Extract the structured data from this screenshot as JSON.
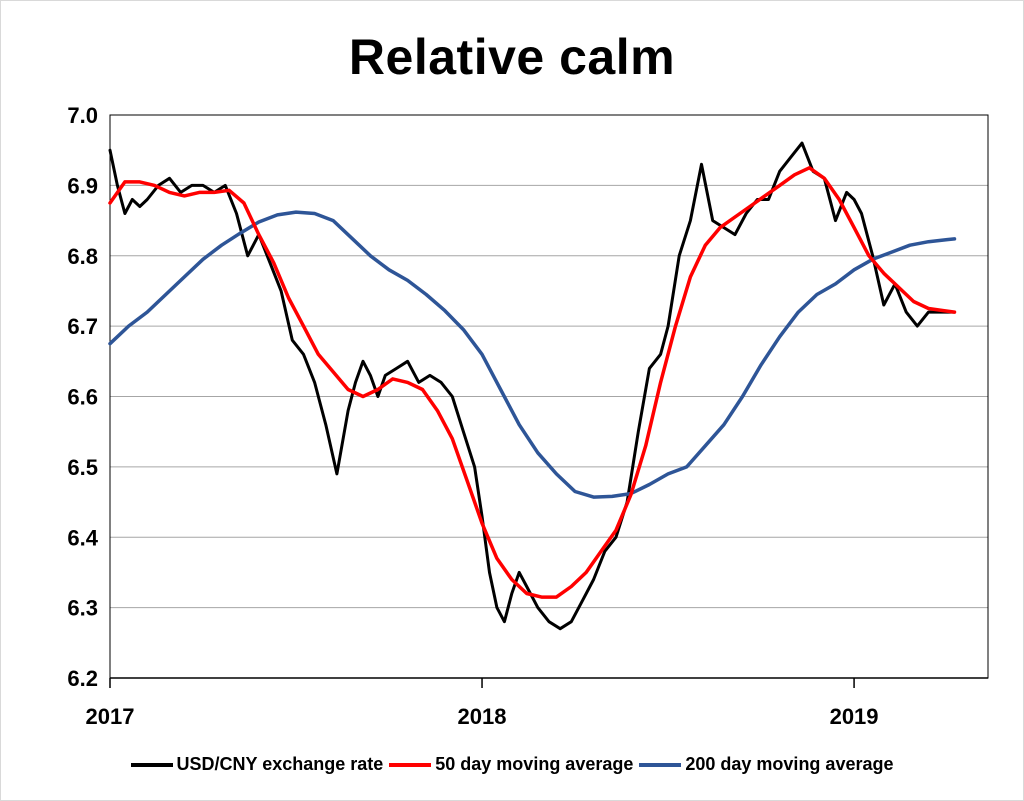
{
  "chart_data": {
    "type": "line",
    "title": "Relative calm",
    "xlabel": "",
    "ylabel": "",
    "x_ticks": [
      "2017",
      "2018",
      "2019"
    ],
    "x_range": [
      "2017-01",
      "2019-05"
    ],
    "ylim": [
      6.2,
      7.0
    ],
    "y_ticks": [
      "6.2",
      "6.3",
      "6.4",
      "6.5",
      "6.6",
      "6.7",
      "6.8",
      "6.9",
      "7.0"
    ],
    "grid": "horizontal",
    "legend": "bottom",
    "series": [
      {
        "name": "USD/CNY exchange rate",
        "color": "#000000",
        "x": [
          2017.0,
          2017.02,
          2017.04,
          2017.06,
          2017.08,
          2017.1,
          2017.13,
          2017.16,
          2017.19,
          2017.22,
          2017.25,
          2017.28,
          2017.31,
          2017.34,
          2017.37,
          2017.4,
          2017.43,
          2017.46,
          2017.49,
          2017.52,
          2017.55,
          2017.58,
          2017.61,
          2017.64,
          2017.66,
          2017.68,
          2017.7,
          2017.72,
          2017.74,
          2017.77,
          2017.8,
          2017.83,
          2017.86,
          2017.89,
          2017.92,
          2017.95,
          2017.98,
          2018.0,
          2018.02,
          2018.04,
          2018.06,
          2018.08,
          2018.1,
          2018.12,
          2018.15,
          2018.18,
          2018.21,
          2018.24,
          2018.27,
          2018.3,
          2018.33,
          2018.36,
          2018.39,
          2018.42,
          2018.45,
          2018.48,
          2018.5,
          2018.53,
          2018.56,
          2018.59,
          2018.62,
          2018.65,
          2018.68,
          2018.71,
          2018.74,
          2018.77,
          2018.8,
          2018.83,
          2018.86,
          2018.89,
          2018.92,
          2018.95,
          2018.98,
          2019.0,
          2019.02,
          2019.05,
          2019.08,
          2019.11,
          2019.14,
          2019.17,
          2019.2,
          2019.23,
          2019.27
        ],
        "y": [
          6.95,
          6.9,
          6.86,
          6.88,
          6.87,
          6.88,
          6.9,
          6.91,
          6.89,
          6.9,
          6.9,
          6.89,
          6.9,
          6.86,
          6.8,
          6.83,
          6.79,
          6.75,
          6.68,
          6.66,
          6.62,
          6.56,
          6.49,
          6.58,
          6.62,
          6.65,
          6.63,
          6.6,
          6.63,
          6.64,
          6.65,
          6.62,
          6.63,
          6.62,
          6.6,
          6.55,
          6.5,
          6.43,
          6.35,
          6.3,
          6.28,
          6.32,
          6.35,
          6.33,
          6.3,
          6.28,
          6.27,
          6.28,
          6.31,
          6.34,
          6.38,
          6.4,
          6.45,
          6.55,
          6.64,
          6.66,
          6.7,
          6.8,
          6.85,
          6.93,
          6.85,
          6.84,
          6.83,
          6.86,
          6.88,
          6.88,
          6.92,
          6.94,
          6.96,
          6.92,
          6.91,
          6.85,
          6.89,
          6.88,
          6.86,
          6.8,
          6.73,
          6.76,
          6.72,
          6.7,
          6.72,
          6.72,
          6.72
        ]
      },
      {
        "name": "50 day moving average",
        "color": "#ff0000",
        "x": [
          2017.0,
          2017.04,
          2017.08,
          2017.12,
          2017.16,
          2017.2,
          2017.24,
          2017.28,
          2017.32,
          2017.36,
          2017.4,
          2017.44,
          2017.48,
          2017.52,
          2017.56,
          2017.6,
          2017.64,
          2017.68,
          2017.72,
          2017.76,
          2017.8,
          2017.84,
          2017.88,
          2017.92,
          2017.96,
          2018.0,
          2018.04,
          2018.08,
          2018.12,
          2018.16,
          2018.2,
          2018.24,
          2018.28,
          2018.32,
          2018.36,
          2018.4,
          2018.44,
          2018.48,
          2018.52,
          2018.56,
          2018.6,
          2018.64,
          2018.68,
          2018.72,
          2018.76,
          2018.8,
          2018.84,
          2018.88,
          2018.92,
          2018.96,
          2019.0,
          2019.04,
          2019.08,
          2019.12,
          2019.16,
          2019.2,
          2019.24,
          2019.27
        ],
        "y": [
          6.875,
          6.905,
          6.905,
          6.9,
          6.89,
          6.885,
          6.89,
          6.89,
          6.893,
          6.875,
          6.83,
          6.79,
          6.74,
          6.7,
          6.66,
          6.635,
          6.61,
          6.6,
          6.61,
          6.625,
          6.62,
          6.61,
          6.58,
          6.54,
          6.48,
          6.42,
          6.37,
          6.34,
          6.32,
          6.315,
          6.315,
          6.33,
          6.35,
          6.38,
          6.41,
          6.46,
          6.53,
          6.62,
          6.7,
          6.77,
          6.815,
          6.84,
          6.855,
          6.87,
          6.885,
          6.9,
          6.915,
          6.925,
          6.91,
          6.88,
          6.84,
          6.8,
          6.775,
          6.755,
          6.735,
          6.725,
          6.722,
          6.72
        ]
      },
      {
        "name": "200 day moving average",
        "color": "#2e5597",
        "x": [
          2017.0,
          2017.05,
          2017.1,
          2017.15,
          2017.2,
          2017.25,
          2017.3,
          2017.35,
          2017.4,
          2017.45,
          2017.5,
          2017.55,
          2017.6,
          2017.65,
          2017.7,
          2017.75,
          2017.8,
          2017.85,
          2017.9,
          2017.95,
          2018.0,
          2018.05,
          2018.1,
          2018.15,
          2018.2,
          2018.25,
          2018.3,
          2018.35,
          2018.4,
          2018.45,
          2018.5,
          2018.55,
          2018.6,
          2018.65,
          2018.7,
          2018.75,
          2018.8,
          2018.85,
          2018.9,
          2018.95,
          2019.0,
          2019.05,
          2019.1,
          2019.15,
          2019.2,
          2019.25,
          2019.27
        ],
        "y": [
          6.675,
          6.7,
          6.72,
          6.745,
          6.77,
          6.795,
          6.815,
          6.832,
          6.848,
          6.858,
          6.862,
          6.86,
          6.85,
          6.825,
          6.8,
          6.78,
          6.765,
          6.745,
          6.722,
          6.695,
          6.66,
          6.61,
          6.56,
          6.52,
          6.49,
          6.465,
          6.457,
          6.458,
          6.462,
          6.475,
          6.49,
          6.5,
          6.53,
          6.56,
          6.6,
          6.645,
          6.685,
          6.72,
          6.745,
          6.76,
          6.78,
          6.795,
          6.805,
          6.815,
          6.82,
          6.823,
          6.824
        ]
      }
    ]
  }
}
